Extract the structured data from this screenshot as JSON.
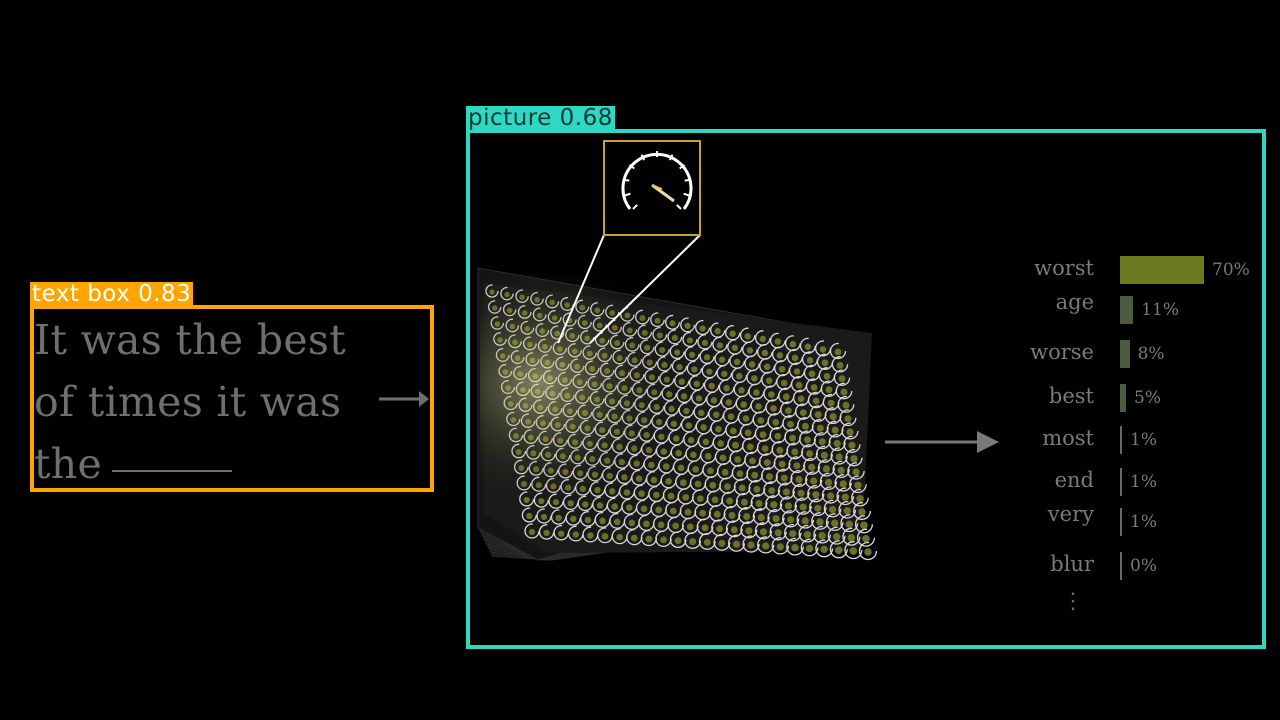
{
  "detections": {
    "text_box": {
      "label": "text box 0.83"
    },
    "picture": {
      "label": "picture 0.68"
    }
  },
  "prose": {
    "line1": "It was the best",
    "line2": "of times it was",
    "line3": "the"
  },
  "chart_data": {
    "type": "bar",
    "categories": [
      "worst",
      "age",
      "worse",
      "best",
      "most",
      "end",
      "very",
      "blur"
    ],
    "values": [
      70,
      11,
      8,
      5,
      1,
      1,
      1,
      0
    ],
    "value_labels": [
      "70%",
      "11%",
      "8%",
      "5%",
      "1%",
      "1%",
      "1%",
      "0%"
    ],
    "orientation": "horizontal",
    "xlim": [
      0,
      70
    ],
    "grid": false,
    "title": "",
    "xlabel": "",
    "ylabel": "",
    "continuation": "⋮"
  },
  "colors": {
    "text_box_border": "#ffa500",
    "picture_box_border": "#2ed8c3",
    "bar_color": "#6b7a1e",
    "bar_color_small": "#4d5c3e"
  },
  "icons": {
    "dial": "dial-gauge-icon",
    "arrow": "arrow-right-icon"
  }
}
